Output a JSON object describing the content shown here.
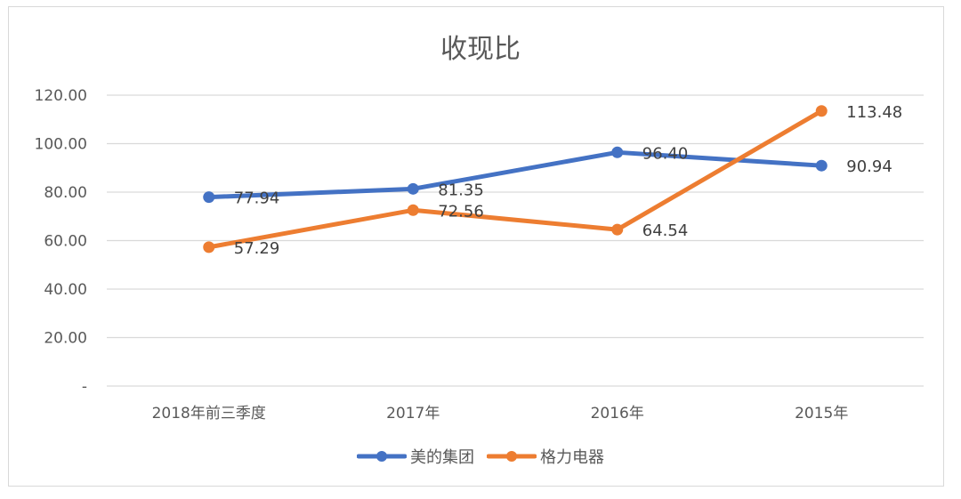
{
  "chart_data": {
    "type": "line",
    "title": "收现比",
    "xlabel": "",
    "ylabel": "",
    "categories": [
      "2018年前三季度",
      "2017年",
      "2016年",
      "2015年"
    ],
    "series": [
      {
        "name": "美的集团",
        "color": "#4472C4",
        "values": [
          77.94,
          81.35,
          96.4,
          90.94
        ],
        "labels": [
          "77.94",
          "81.35",
          "96.40",
          "90.94"
        ]
      },
      {
        "name": "格力电器",
        "color": "#ED7D31",
        "values": [
          57.29,
          72.56,
          64.54,
          113.48
        ],
        "labels": [
          "57.29",
          "72.56",
          "64.54",
          "113.48"
        ]
      }
    ],
    "yticks": [
      "120.00",
      "100.00",
      "80.00",
      "60.00",
      "40.00",
      "20.00",
      "-"
    ],
    "ytick_values": [
      120,
      100,
      80,
      60,
      40,
      20,
      0
    ],
    "ylim": [
      0,
      120
    ],
    "grid": true,
    "legend_position": "bottom"
  }
}
